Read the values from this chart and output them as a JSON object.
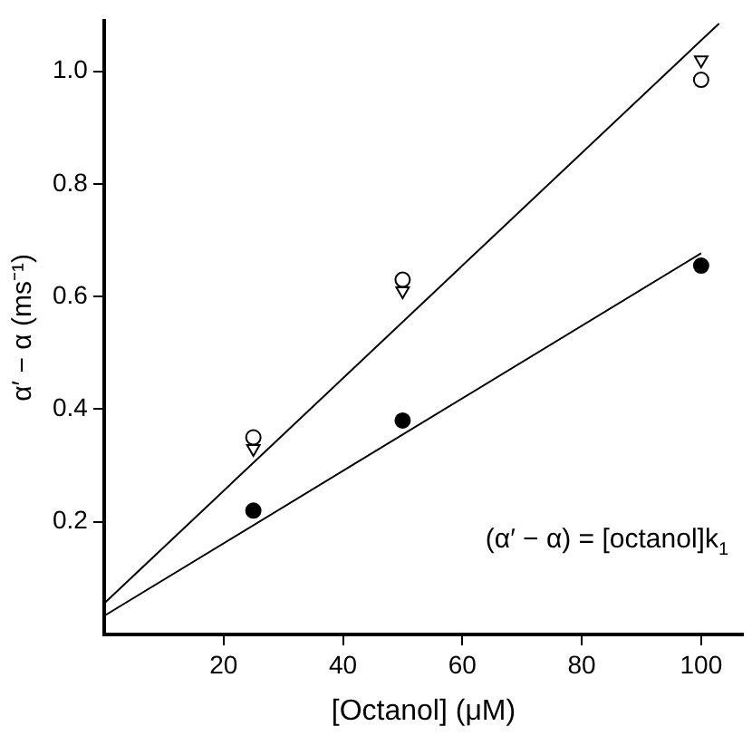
{
  "chart_data": {
    "type": "scatter",
    "xlabel": "[Octanol] (μM)",
    "ylabel": "α′ − α (ms⁻¹)",
    "xlim": [
      0,
      107
    ],
    "xticks": [
      20,
      40,
      60,
      80,
      100
    ],
    "ylim": [
      0,
      1.09
    ],
    "yticks": [
      0.2,
      0.4,
      0.6,
      0.8,
      {
        "value": 1,
        "label": "1.0"
      }
    ],
    "grid": false,
    "legend": false,
    "annotations": [
      "(α′ − α) = [octanol]k$_{1}$"
    ],
    "x": [
      25,
      50,
      100
    ],
    "series": [
      {
        "marker": "circle",
        "color": "#ffffff",
        "values": [
          0.35,
          0.63,
          0.985
        ]
      },
      {
        "marker": "triangle",
        "color": "#ffffff",
        "values": [
          0.33,
          0.61,
          1.02
        ]
      },
      {
        "marker": "circle",
        "color": "#000000",
        "values": [
          0.22,
          0.38,
          0.655
        ]
      },
      {
        "type": "line",
        "marker": "none",
        "line_style": "solid",
        "color": "#000000",
        "x": [
          0,
          103
        ],
        "values": [
          0.055,
          1.085
        ]
      },
      {
        "type": "line",
        "marker": "none",
        "line_style": "solid",
        "color": "#000000",
        "x": [
          0,
          100
        ],
        "values": [
          0.033,
          0.677
        ]
      }
    ]
  }
}
